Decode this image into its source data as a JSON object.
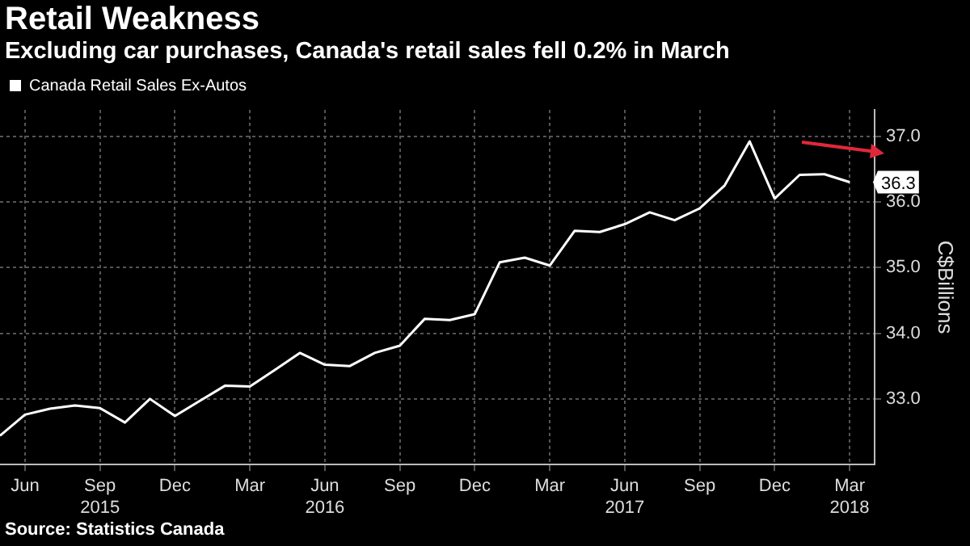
{
  "chart_data": {
    "type": "line",
    "title": "Retail Weakness",
    "subtitle": "Excluding car purchases, Canada's retail sales fell 0.2% in March",
    "ylabel": "C$Billions",
    "annotations": [
      "Source: Statistics Canada"
    ],
    "x": [
      "2015-05",
      "2015-06",
      "2015-07",
      "2015-08",
      "2015-09",
      "2015-10",
      "2015-11",
      "2015-12",
      "2016-01",
      "2016-02",
      "2016-03",
      "2016-04",
      "2016-05",
      "2016-06",
      "2016-07",
      "2016-08",
      "2016-09",
      "2016-10",
      "2016-11",
      "2016-12",
      "2017-01",
      "2017-02",
      "2017-03",
      "2017-04",
      "2017-05",
      "2017-06",
      "2017-07",
      "2017-08",
      "2017-09",
      "2017-10",
      "2017-11",
      "2017-12",
      "2018-01",
      "2018-02",
      "2018-03"
    ],
    "series": [
      {
        "name": "Canada Retail Sales Ex-Autos",
        "color": "#ffffff",
        "values": [
          32.44,
          32.76,
          32.85,
          32.9,
          32.86,
          32.64,
          33.0,
          32.74,
          32.97,
          33.2,
          33.19,
          33.44,
          33.7,
          33.52,
          33.5,
          33.7,
          33.81,
          34.22,
          34.2,
          34.29,
          35.08,
          35.15,
          35.03,
          35.56,
          35.54,
          35.66,
          35.84,
          35.72,
          35.9,
          36.25,
          36.92,
          36.05,
          36.41,
          36.42,
          36.3
        ],
        "value_labels": [
          null,
          null,
          null,
          null,
          null,
          null,
          null,
          null,
          null,
          null,
          null,
          null,
          null,
          null,
          null,
          null,
          null,
          null,
          null,
          null,
          null,
          null,
          null,
          null,
          null,
          null,
          null,
          null,
          null,
          null,
          null,
          null,
          null,
          null,
          "36.3"
        ]
      }
    ],
    "xlim": [
      "2015-05",
      "2018-04"
    ],
    "xticks": [
      {
        "value": "2015-06",
        "label": "Jun"
      },
      {
        "value": "2015-09",
        "label": "Sep\n2015"
      },
      {
        "value": "2015-12",
        "label": "Dec"
      },
      {
        "value": "2016-03",
        "label": "Mar"
      },
      {
        "value": "2016-06",
        "label": "Jun\n2016"
      },
      {
        "value": "2016-09",
        "label": "Sep"
      },
      {
        "value": "2016-12",
        "label": "Dec"
      },
      {
        "value": "2017-03",
        "label": "Mar"
      },
      {
        "value": "2017-06",
        "label": "Jun\n2017"
      },
      {
        "value": "2017-09",
        "label": "Sep"
      },
      {
        "value": "2017-12",
        "label": "Dec"
      },
      {
        "value": "2018-03",
        "label": "Mar\n2018"
      }
    ],
    "ylim": [
      32,
      37.4
    ],
    "yticks": [
      {
        "value": 33,
        "label": "33.0"
      },
      {
        "value": 34,
        "label": "34.0"
      },
      {
        "value": 35,
        "label": "35.0"
      },
      {
        "value": 36,
        "label": "36.0"
      },
      {
        "value": 37,
        "label": "37.0"
      }
    ],
    "grid": true,
    "legend": "top left",
    "marker": "none",
    "line_style": "solid"
  }
}
